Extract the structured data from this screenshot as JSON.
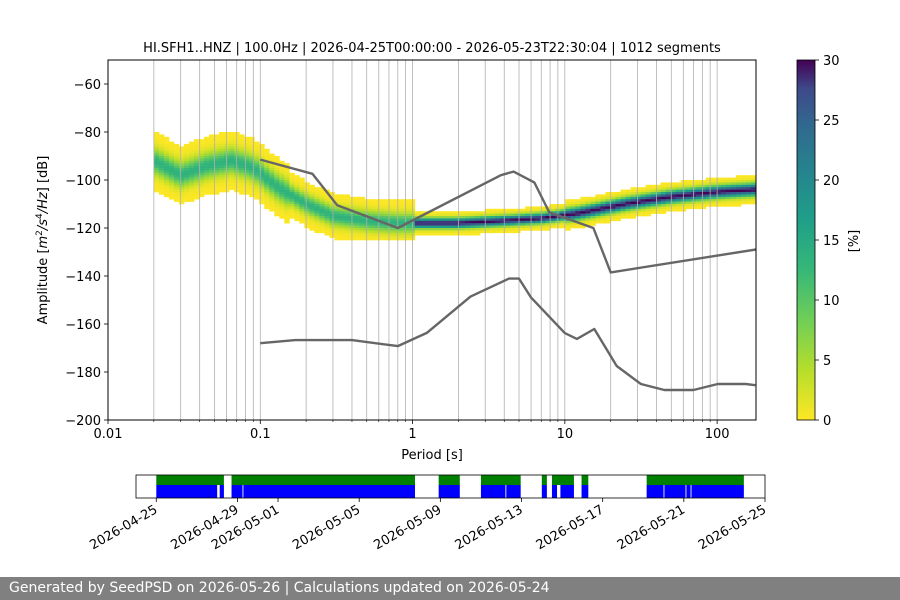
{
  "chart_data": [
    {
      "type": "heatmap",
      "title": "HI.SFH1..HNZ | 100.0Hz | 2026-04-25T00:00:00 - 2026-05-23T22:30:04 | 1012 segments",
      "xlabel": "Period [s]",
      "ylabel": "Amplitude [$m^2/s^4/Hz$] [dB]",
      "x_scale": "log",
      "xlim": [
        0.01,
        180
      ],
      "ylim": [
        -200,
        -50
      ],
      "x_ticks": [
        {
          "value": 0.01,
          "label": "0.01"
        },
        {
          "value": 0.1,
          "label": "0.1"
        },
        {
          "value": 1,
          "label": "1"
        },
        {
          "value": 10,
          "label": "10"
        },
        {
          "value": 100,
          "label": "100"
        }
      ],
      "y_ticks": [
        -60,
        -80,
        -100,
        -120,
        -140,
        -160,
        -180,
        -200
      ],
      "y_tick_labels": [
        "−60",
        "−80",
        "−100",
        "−120",
        "−140",
        "−160",
        "−180",
        "−200"
      ],
      "grid_periods": [
        0.02,
        0.03,
        0.04,
        0.05,
        0.06,
        0.07,
        0.08,
        0.09,
        0.1,
        0.2,
        0.3,
        0.4,
        0.5,
        0.6,
        0.7,
        0.8,
        0.9,
        1,
        2,
        3,
        4,
        5,
        6,
        7,
        8,
        9,
        10,
        20,
        30,
        40,
        50,
        60,
        70,
        80,
        90,
        100
      ],
      "colorbar": {
        "label": "[%]",
        "range": [
          0,
          30
        ],
        "ticks": [
          0,
          5,
          10,
          15,
          20,
          25,
          30
        ],
        "colormap": "viridis_r"
      },
      "psd_distribution": {
        "period_range": [
          0.02,
          180
        ],
        "mode_curve": {
          "period": [
            0.02,
            0.03,
            0.045,
            0.065,
            0.09,
            0.13,
            0.2,
            0.3,
            0.5,
            0.8,
            1.2,
            2,
            4,
            7,
            12,
            25,
            50,
            100,
            180
          ],
          "db": [
            -92,
            -98,
            -94,
            -92,
            -95,
            -103,
            -110,
            -115,
            -117,
            -118,
            -118,
            -118,
            -117,
            -116,
            -114,
            -110,
            -107,
            -105,
            -104
          ]
        }
      },
      "noise_model_high": {
        "period": [
          0.1,
          0.22,
          0.32,
          0.8,
          3.8,
          4.6,
          6.3,
          7.9,
          15.4,
          20,
          354.8
        ],
        "db": [
          -91.5,
          -97.4,
          -110.5,
          -120,
          -98,
          -96.5,
          -101,
          -113.5,
          -120,
          -138.5,
          -126
        ]
      },
      "noise_model_low": {
        "period": [
          0.1,
          0.17,
          0.4,
          0.8,
          1.24,
          2.4,
          4.3,
          5,
          6,
          10,
          12,
          15.6,
          21.9,
          31.6,
          45,
          70,
          101,
          154,
          178
        ],
        "db": [
          -168,
          -166.7,
          -166.7,
          -169.2,
          -163.7,
          -148.6,
          -141.1,
          -141.1,
          -149,
          -163.8,
          -166.2,
          -162.1,
          -177.5,
          -185,
          -187.5,
          -187.5,
          -185,
          -185,
          -185.5
        ]
      }
    },
    {
      "type": "timeline",
      "x_range": [
        "2026-04-24",
        "2026-05-25"
      ],
      "x_ticks": [
        "2026-04-25",
        "2026-04-29",
        "2026-05-01",
        "2026-05-05",
        "2026-05-09",
        "2026-05-13",
        "2026-05-17",
        "2026-05-21",
        "2026-05-25"
      ],
      "colors": {
        "data": "#0000ff",
        "psd": "#008000"
      },
      "data_segments": [
        [
          "2026-04-25T00:00",
          "2026-04-28T00:00"
        ],
        [
          "2026-04-28T03:00",
          "2026-04-28T08:00"
        ],
        [
          "2026-04-28T17:00",
          "2026-04-29T06:00"
        ],
        [
          "2026-04-29T07:00",
          "2026-05-07T18:00"
        ],
        [
          "2026-05-08T22:00",
          "2026-05-09T23:00"
        ],
        [
          "2026-05-11T00:00",
          "2026-05-12T05:00"
        ],
        [
          "2026-05-12T06:00",
          "2026-05-12T23:00"
        ],
        [
          "2026-05-14T00:00",
          "2026-05-14T06:00"
        ],
        [
          "2026-05-14T12:00",
          "2026-05-14T18:00"
        ],
        [
          "2026-05-14T22:00",
          "2026-05-15T14:00"
        ],
        [
          "2026-05-15T23:00",
          "2026-05-16T07:00"
        ],
        [
          "2026-05-19T04:00",
          "2026-05-20T00:00"
        ],
        [
          "2026-05-20T01:00",
          "2026-05-21T02:00"
        ],
        [
          "2026-05-21T03:00",
          "2026-05-21T08:00"
        ],
        [
          "2026-05-21T09:00",
          "2026-05-23T23:00"
        ]
      ],
      "psd_segments": [
        [
          "2026-04-25T00:00",
          "2026-04-28T08:00"
        ],
        [
          "2026-04-28T17:00",
          "2026-05-07T18:00"
        ],
        [
          "2026-05-08T22:00",
          "2026-05-09T23:00"
        ],
        [
          "2026-05-11T00:00",
          "2026-05-12T23:00"
        ],
        [
          "2026-05-14T00:00",
          "2026-05-14T06:00"
        ],
        [
          "2026-05-14T12:00",
          "2026-05-15T14:00"
        ],
        [
          "2026-05-15T23:00",
          "2026-05-16T07:00"
        ],
        [
          "2026-05-19T04:00",
          "2026-05-23T23:00"
        ]
      ]
    }
  ],
  "footer": "Generated by SeedPSD on 2026-05-26 | Calculations updated on 2026-05-24"
}
